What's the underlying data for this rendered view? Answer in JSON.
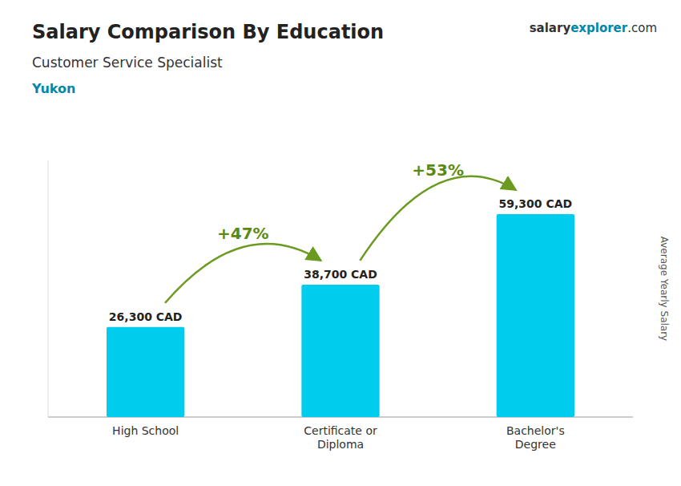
{
  "chart_data": {
    "type": "bar",
    "title": "Salary Comparison By Education",
    "subtitle": "Customer Service Specialist",
    "region": "Yukon",
    "brand": [
      "salary",
      "explorer",
      ".com"
    ],
    "categories": [
      "High School",
      "Certificate or\nDiploma",
      "Bachelor's\nDegree"
    ],
    "values": [
      26300,
      38700,
      59300
    ],
    "value_labels": [
      "26,300 CAD",
      "38,700 CAD",
      "59,300 CAD"
    ],
    "data_labels": true,
    "annotations": [
      "+47%",
      "+53%"
    ],
    "ylabel": "Average Yearly Salary",
    "ylim": [
      0,
      75000
    ],
    "tick_labels": false,
    "color": "#00ccee"
  }
}
